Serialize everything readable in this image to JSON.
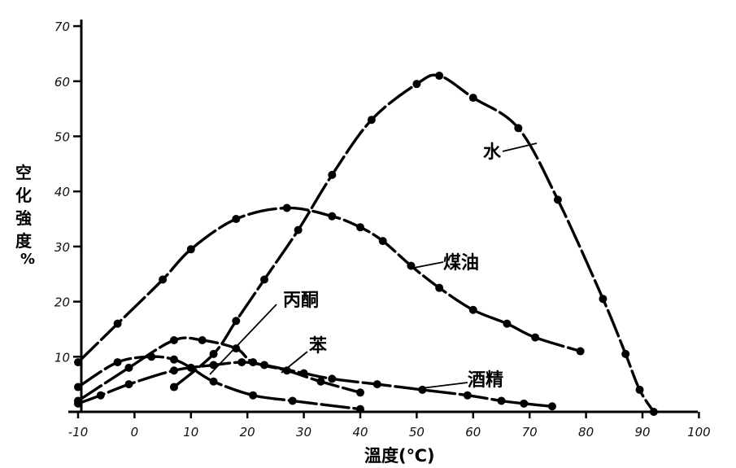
{
  "chart_data": {
    "type": "line",
    "xlabel": "溫度(℃)",
    "ylabel_chars": [
      "空",
      "化",
      "強",
      "度"
    ],
    "ylabel_unit": "%",
    "xlim": [
      -10,
      100
    ],
    "ylim": [
      0,
      70
    ],
    "x_ticks": [
      "-10",
      "0",
      "10",
      "20",
      "30",
      "40",
      "50",
      "60",
      "70",
      "80",
      "90",
      "100"
    ],
    "y_ticks": [
      "10",
      "20",
      "30",
      "40",
      "50",
      "60",
      "70"
    ],
    "x_tick_values": [
      -10,
      0,
      10,
      20,
      30,
      40,
      50,
      60,
      70,
      80,
      90,
      100
    ],
    "y_tick_values": [
      10,
      20,
      30,
      40,
      50,
      60,
      70
    ],
    "grid": false,
    "series": [
      {
        "name": "水",
        "points": [
          [
            7,
            4.5
          ],
          [
            14,
            10.5
          ],
          [
            18,
            16.5
          ],
          [
            23,
            24
          ],
          [
            29,
            33
          ],
          [
            35,
            43
          ],
          [
            42,
            53
          ],
          [
            50,
            59.5
          ],
          [
            54,
            61
          ],
          [
            60,
            57
          ],
          [
            68,
            51.5
          ],
          [
            75,
            38.5
          ],
          [
            83,
            20.5
          ],
          [
            87,
            10.5
          ],
          [
            89.5,
            4
          ],
          [
            92,
            0
          ]
        ]
      },
      {
        "name": "煤油",
        "points": [
          [
            -10,
            9
          ],
          [
            -3,
            16
          ],
          [
            5,
            24
          ],
          [
            10,
            29.5
          ],
          [
            18,
            35
          ],
          [
            27,
            37
          ],
          [
            35,
            35.5
          ],
          [
            40,
            33.5
          ],
          [
            44,
            31
          ],
          [
            49,
            26.5
          ],
          [
            54,
            22.5
          ],
          [
            60,
            18.5
          ],
          [
            66,
            16
          ],
          [
            71,
            13.5
          ],
          [
            79,
            11
          ]
        ]
      },
      {
        "name": "丙酮",
        "points": [
          [
            -10,
            2
          ],
          [
            -1,
            8
          ],
          [
            7,
            13
          ],
          [
            12,
            13
          ],
          [
            18,
            11.5
          ],
          [
            21,
            9
          ],
          [
            27,
            7.5
          ],
          [
            33,
            5.5
          ],
          [
            40,
            3.5
          ]
        ]
      },
      {
        "name": "苯",
        "points": [
          [
            -10,
            1.5
          ],
          [
            -6,
            3
          ],
          [
            -1,
            5
          ],
          [
            7,
            7.5
          ],
          [
            14,
            8.5
          ],
          [
            19,
            9
          ],
          [
            23,
            8.5
          ],
          [
            30,
            7
          ],
          [
            35,
            6
          ],
          [
            43,
            5
          ],
          [
            51,
            4
          ],
          [
            59,
            3
          ],
          [
            65,
            2
          ],
          [
            69,
            1.5
          ],
          [
            74,
            1
          ]
        ]
      },
      {
        "name": "酒精",
        "points": [
          [
            -10,
            4.5
          ],
          [
            -3,
            9
          ],
          [
            3,
            10
          ],
          [
            7,
            9.5
          ],
          [
            10,
            8
          ],
          [
            14,
            5.5
          ],
          [
            21,
            3
          ],
          [
            28,
            2
          ],
          [
            40,
            0.5
          ]
        ]
      }
    ]
  }
}
